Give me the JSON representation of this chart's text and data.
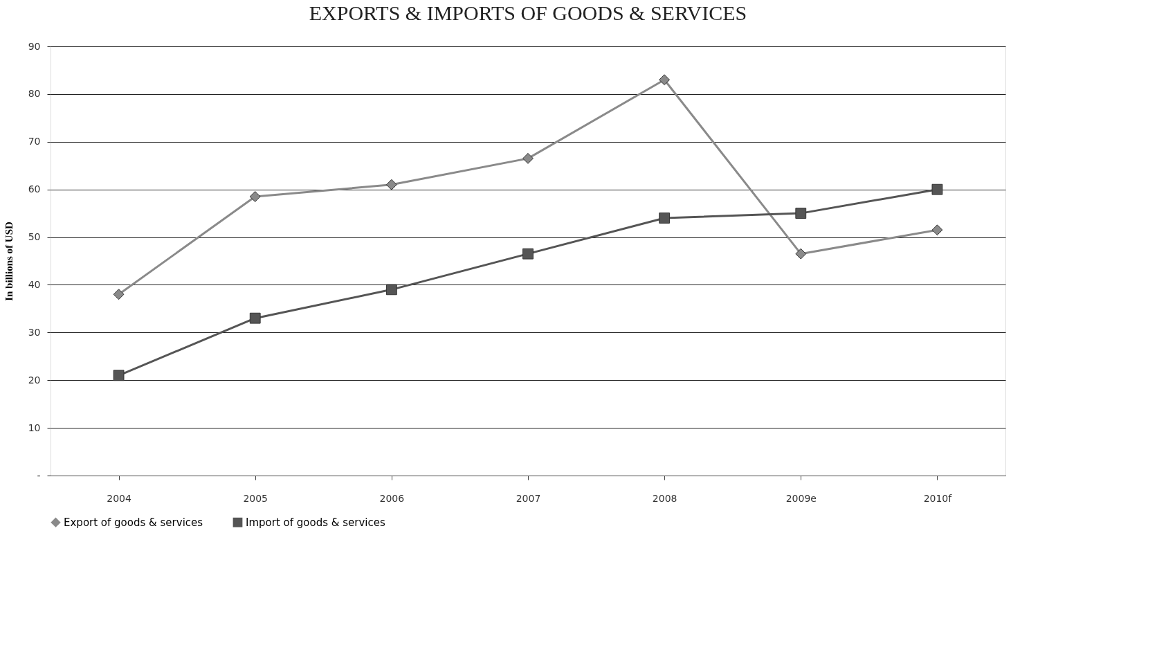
{
  "chart_data": {
    "type": "line",
    "title": "EXPORTS & IMPORTS OF GOODS & SERVICES",
    "ylabel": "In billions of USD",
    "categories": [
      "2004",
      "2005",
      "2006",
      "2007",
      "2008",
      "2009e",
      "2010f"
    ],
    "series": [
      {
        "name": "Export of goods & services",
        "color": "#8a8a8a",
        "marker": "diamond",
        "values": [
          38,
          58.5,
          61,
          66.5,
          83,
          46.5,
          51.5
        ]
      },
      {
        "name": "Import of goods & services",
        "color": "#555555",
        "marker": "square",
        "values": [
          21,
          33,
          39,
          46.5,
          54,
          55,
          60
        ]
      }
    ],
    "ylim": [
      0,
      90
    ],
    "yticks": [
      {
        "value": 0,
        "label": "-"
      },
      10,
      20,
      30,
      40,
      50,
      60,
      70,
      80,
      90
    ],
    "grid": "y",
    "legend": "bottom",
    "line_style": "solid"
  }
}
